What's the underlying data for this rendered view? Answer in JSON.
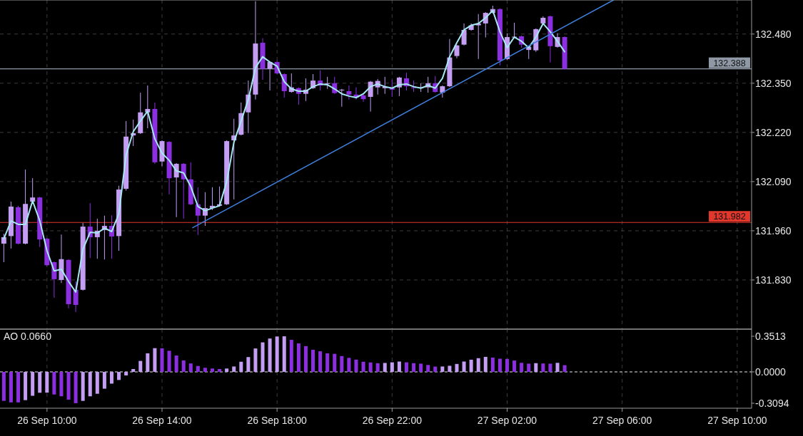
{
  "chart_data": [
    {
      "type": "candlestick",
      "tick_labels": "y",
      "grid": true,
      "x": [
        "--09-26T08:30",
        "--09-26T08:45",
        "--09-26T09:00",
        "--09-26T09:15",
        "--09-26T09:30",
        "--09-26T09:45",
        "--09-26T10:00",
        "--09-26T10:15",
        "--09-26T10:30",
        "--09-26T10:45",
        "--09-26T11:00",
        "--09-26T11:15",
        "--09-26T11:30",
        "--09-26T11:45",
        "--09-26T12:00",
        "--09-26T12:15",
        "--09-26T12:30",
        "--09-26T12:45",
        "--09-26T13:00",
        "--09-26T13:15",
        "--09-26T13:30",
        "--09-26T13:45",
        "--09-26T14:00",
        "--09-26T14:15",
        "--09-26T14:30",
        "--09-26T14:45",
        "--09-26T15:00",
        "--09-26T15:15",
        "--09-26T15:30",
        "--09-26T15:45",
        "--09-26T16:00",
        "--09-26T16:15",
        "--09-26T16:30",
        "--09-26T16:45",
        "--09-26T17:00",
        "--09-26T17:15",
        "--09-26T17:30",
        "--09-26T17:45",
        "--09-26T18:00",
        "--09-26T18:15",
        "--09-26T18:30",
        "--09-26T18:45",
        "--09-26T19:00",
        "--09-26T19:15",
        "--09-26T19:30",
        "--09-26T19:45",
        "--09-26T20:00",
        "--09-26T20:15",
        "--09-26T20:30",
        "--09-26T20:45",
        "--09-26T21:00",
        "--09-26T21:15",
        "--09-26T21:30",
        "--09-26T21:45",
        "--09-26T22:00",
        "--09-26T22:15",
        "--09-26T22:30",
        "--09-26T22:45",
        "--09-26T23:00",
        "--09-26T23:15",
        "--09-26T23:30",
        "--09-26T23:45",
        "--09-27T00:00",
        "--09-27T00:15",
        "--09-27T00:30",
        "--09-27T00:45",
        "--09-27T01:00",
        "--09-27T01:15",
        "--09-27T01:30",
        "--09-27T01:45",
        "--09-27T02:00",
        "--09-27T02:15",
        "--09-27T02:30",
        "--09-27T02:45",
        "--09-27T03:00",
        "--09-27T03:15",
        "--09-27T03:30",
        "--09-27T03:45",
        "--09-27T04:00"
      ],
      "ohlc": [
        [
          131.926,
          131.952,
          131.877,
          131.943
        ],
        [
          131.946,
          132.037,
          131.913,
          132.024
        ],
        [
          132.022,
          132.026,
          131.924,
          131.926
        ],
        [
          131.926,
          132.122,
          131.924,
          132.031
        ],
        [
          132.037,
          132.099,
          132.033,
          132.048
        ],
        [
          132.048,
          132.05,
          131.917,
          131.937
        ],
        [
          131.939,
          131.941,
          131.867,
          131.869
        ],
        [
          131.877,
          131.879,
          131.783,
          131.832
        ],
        [
          131.83,
          131.95,
          131.822,
          131.885
        ],
        [
          131.883,
          131.885,
          131.755,
          131.766
        ],
        [
          131.804,
          131.826,
          131.745,
          131.764
        ],
        [
          131.804,
          131.981,
          131.802,
          131.971
        ],
        [
          131.971,
          132.033,
          131.888,
          131.943
        ],
        [
          131.943,
          131.992,
          131.886,
          131.96
        ],
        [
          131.962,
          132.0,
          131.884,
          131.973
        ],
        [
          131.973,
          132.001,
          131.886,
          131.945
        ],
        [
          131.946,
          132.079,
          131.907,
          132.069
        ],
        [
          132.071,
          132.25,
          132.066,
          132.209
        ],
        [
          132.212,
          132.254,
          132.184,
          132.218
        ],
        [
          132.218,
          132.325,
          132.216,
          132.273
        ],
        [
          132.273,
          132.344,
          132.231,
          132.282
        ],
        [
          132.282,
          132.299,
          132.137,
          132.141
        ],
        [
          132.143,
          132.199,
          132.131,
          132.197
        ],
        [
          132.195,
          132.197,
          132.056,
          132.099
        ],
        [
          132.101,
          132.139,
          131.996,
          132.137
        ],
        [
          132.137,
          132.139,
          131.992,
          132.096
        ],
        [
          132.096,
          132.141,
          132.028,
          132.03
        ],
        [
          132.03,
          132.075,
          131.949,
          132.0
        ],
        [
          132.0,
          132.062,
          131.973,
          132.02
        ],
        [
          132.02,
          132.075,
          132.015,
          132.026
        ],
        [
          132.026,
          132.077,
          132.024,
          132.03
        ],
        [
          132.03,
          132.199,
          132.028,
          132.197
        ],
        [
          132.199,
          132.256,
          132.043,
          132.212
        ],
        [
          132.214,
          132.299,
          132.212,
          132.271
        ],
        [
          132.273,
          132.357,
          132.218,
          132.32
        ],
        [
          132.32,
          132.567,
          132.307,
          132.455
        ],
        [
          132.457,
          132.469,
          132.359,
          132.388
        ],
        [
          132.388,
          132.408,
          132.331,
          132.406
        ],
        [
          132.406,
          132.41,
          132.374,
          132.376
        ],
        [
          132.374,
          132.376,
          132.312,
          132.329
        ],
        [
          132.327,
          132.376,
          132.325,
          132.339
        ],
        [
          132.337,
          132.339,
          132.293,
          132.322
        ],
        [
          132.322,
          132.363,
          132.303,
          132.333
        ],
        [
          132.337,
          132.374,
          132.335,
          132.357
        ],
        [
          132.357,
          132.384,
          132.331,
          132.344
        ],
        [
          132.348,
          132.367,
          132.335,
          132.35
        ],
        [
          132.35,
          132.367,
          132.322,
          132.324
        ],
        [
          132.331,
          132.335,
          132.288,
          132.333
        ],
        [
          132.329,
          132.344,
          132.307,
          132.32
        ],
        [
          132.32,
          132.339,
          132.307,
          132.312
        ],
        [
          132.318,
          132.322,
          132.301,
          132.308
        ],
        [
          132.314,
          132.356,
          132.275,
          132.354
        ],
        [
          132.339,
          132.361,
          132.32,
          132.356
        ],
        [
          132.337,
          132.367,
          132.322,
          132.341
        ],
        [
          132.337,
          132.359,
          132.314,
          132.333
        ],
        [
          132.339,
          132.367,
          132.316,
          132.365
        ],
        [
          132.363,
          132.378,
          132.331,
          132.342
        ],
        [
          132.339,
          132.357,
          132.327,
          132.337
        ],
        [
          132.337,
          132.35,
          132.327,
          132.339
        ],
        [
          132.339,
          132.367,
          132.325,
          132.35
        ],
        [
          132.35,
          132.369,
          132.325,
          132.327
        ],
        [
          132.325,
          132.344,
          132.312,
          132.342
        ],
        [
          132.342,
          132.467,
          132.34,
          132.418
        ],
        [
          132.422,
          132.452,
          132.416,
          132.45
        ],
        [
          132.452,
          132.508,
          132.45,
          132.491
        ],
        [
          132.491,
          132.508,
          132.489,
          132.503
        ],
        [
          132.503,
          132.533,
          132.414,
          132.508
        ],
        [
          132.508,
          132.538,
          132.471,
          132.536
        ],
        [
          132.536,
          132.555,
          132.534,
          132.546
        ],
        [
          132.546,
          132.548,
          132.397,
          132.41
        ],
        [
          132.414,
          132.482,
          132.412,
          132.472
        ],
        [
          132.471,
          132.51,
          132.469,
          132.473
        ],
        [
          132.474,
          132.476,
          132.444,
          132.452
        ],
        [
          132.438,
          132.448,
          132.414,
          132.446
        ],
        [
          132.437,
          132.495,
          132.433,
          132.493
        ],
        [
          132.508,
          132.527,
          132.506,
          132.523
        ],
        [
          132.527,
          132.529,
          132.405,
          132.448
        ],
        [
          132.446,
          132.482,
          132.444,
          132.472
        ],
        [
          132.472,
          132.474,
          132.386,
          132.388
        ]
      ],
      "colors": [
        "#c39ef3",
        "#c39ef3",
        "#8b2fe0",
        "#c39ef3",
        "#c39ef3",
        "#8b2fe0",
        "#8b2fe0",
        "#8b2fe0",
        "#c39ef3",
        "#8b2fe0",
        "#8b2fe0",
        "#c39ef3",
        "#8b2fe0",
        "#c39ef3",
        "#c39ef3",
        "#8b2fe0",
        "#c39ef3",
        "#c39ef3",
        "#c39ef3",
        "#c39ef3",
        "#c39ef3",
        "#8b2fe0",
        "#c39ef3",
        "#8b2fe0",
        "#c39ef3",
        "#8b2fe0",
        "#8b2fe0",
        "#8b2fe0",
        "#c39ef3",
        "#c39ef3",
        "#c39ef3",
        "#c39ef3",
        "#c39ef3",
        "#c39ef3",
        "#c39ef3",
        "#c39ef3",
        "#8b2fe0",
        "#c39ef3",
        "#8b2fe0",
        "#8b2fe0",
        "#c39ef3",
        "#8b2fe0",
        "#c39ef3",
        "#c39ef3",
        "#8b2fe0",
        "#c39ef3",
        "#8b2fe0",
        "#c39ef3",
        "#8b2fe0",
        "#8b2fe0",
        "#8b2fe0",
        "#c39ef3",
        "#c39ef3",
        "#c39ef3",
        "#8b2fe0",
        "#c39ef3",
        "#8b2fe0",
        "#8b2fe0",
        "#c39ef3",
        "#c39ef3",
        "#8b2fe0",
        "#c39ef3",
        "#c39ef3",
        "#c39ef3",
        "#c39ef3",
        "#c39ef3",
        "#c39ef3",
        "#c39ef3",
        "#c39ef3",
        "#8b2fe0",
        "#c39ef3",
        "#c39ef3",
        "#8b2fe0",
        "#c39ef3",
        "#c39ef3",
        "#c39ef3",
        "#8b2fe0",
        "#c39ef3",
        "#8b2fe0"
      ],
      "series": [
        {
          "type": "line",
          "color": "#a6e8f2",
          "values": [
            131.939,
            131.986,
            131.977,
            131.977,
            132.039,
            131.986,
            131.907,
            131.854,
            131.858,
            131.826,
            131.798,
            131.911,
            131.956,
            131.954,
            131.967,
            131.958,
            132.005,
            132.16,
            132.222,
            132.25,
            132.276,
            132.203,
            132.165,
            132.146,
            132.118,
            132.113,
            132.077,
            132.024,
            132.013,
            132.02,
            132.026,
            132.09,
            132.194,
            132.25,
            132.307,
            132.391,
            132.42,
            132.406,
            132.395,
            132.354,
            132.335,
            132.329,
            132.329,
            132.341,
            132.348,
            132.346,
            132.335,
            132.322,
            132.316,
            132.312,
            132.322,
            132.341,
            132.348,
            132.341,
            132.337,
            132.346,
            132.348,
            132.341,
            132.337,
            132.344,
            132.337,
            132.363,
            132.42,
            132.457,
            132.491,
            132.503,
            132.508,
            132.523,
            132.542,
            132.486,
            132.444,
            132.472,
            132.461,
            132.444,
            132.472,
            132.508,
            132.486,
            132.461,
            132.433
          ]
        },
        {
          "type": "line",
          "color": "#3f7fdc",
          "x": [
            "--09-26T15:04",
            "--09-27T05:42"
          ],
          "values": [
            131.968,
            132.57
          ]
        }
      ],
      "xlim": [
        "--09-26T08:22",
        "--09-27T10:30"
      ],
      "xticks": [
        {
          "value": "--09-26T10:00",
          "label": null
        },
        {
          "value": "--09-26T14:00",
          "label": null
        },
        {
          "value": "--09-26T18:00",
          "label": null
        },
        {
          "value": "--09-26T22:00",
          "label": null
        },
        {
          "value": "--09-27T02:00",
          "label": null
        },
        {
          "value": "--09-27T06:00",
          "label": null
        },
        {
          "value": "--09-27T10:00",
          "label": null
        }
      ],
      "ylim": [
        131.7,
        132.57
      ],
      "yticks": [
        {
          "value": 131.83,
          "label": "131.830"
        },
        {
          "value": 131.96,
          "label": "131.960"
        },
        {
          "value": 132.09,
          "label": "132.090"
        },
        {
          "value": 132.22,
          "label": "132.220"
        },
        {
          "value": 132.35,
          "label": "132.350"
        },
        {
          "value": 132.48,
          "label": "132.480"
        }
      ],
      "ref_lines": [
        {
          "axis": "y",
          "value": 132.388,
          "label": "132.388",
          "color": "#8e99a5"
        },
        {
          "axis": "y",
          "value": 131.982,
          "label": "131.982",
          "color": "#e2372c"
        }
      ]
    },
    {
      "type": "bar",
      "title": "AO 0.0660",
      "grid": "x",
      "x": [
        "--09-26T08:30",
        "--09-26T08:45",
        "--09-26T09:00",
        "--09-26T09:15",
        "--09-26T09:30",
        "--09-26T09:45",
        "--09-26T10:00",
        "--09-26T10:15",
        "--09-26T10:30",
        "--09-26T10:45",
        "--09-26T11:00",
        "--09-26T11:15",
        "--09-26T11:30",
        "--09-26T11:45",
        "--09-26T12:00",
        "--09-26T12:15",
        "--09-26T12:30",
        "--09-26T12:45",
        "--09-26T13:00",
        "--09-26T13:15",
        "--09-26T13:30",
        "--09-26T13:45",
        "--09-26T14:00",
        "--09-26T14:15",
        "--09-26T14:30",
        "--09-26T14:45",
        "--09-26T15:00",
        "--09-26T15:15",
        "--09-26T15:30",
        "--09-26T15:45",
        "--09-26T16:00",
        "--09-26T16:15",
        "--09-26T16:30",
        "--09-26T16:45",
        "--09-26T17:00",
        "--09-26T17:15",
        "--09-26T17:30",
        "--09-26T17:45",
        "--09-26T18:00",
        "--09-26T18:15",
        "--09-26T18:30",
        "--09-26T18:45",
        "--09-26T19:00",
        "--09-26T19:15",
        "--09-26T19:30",
        "--09-26T19:45",
        "--09-26T20:00",
        "--09-26T20:15",
        "--09-26T20:30",
        "--09-26T20:45",
        "--09-26T21:00",
        "--09-26T21:15",
        "--09-26T21:30",
        "--09-26T21:45",
        "--09-26T22:00",
        "--09-26T22:15",
        "--09-26T22:30",
        "--09-26T22:45",
        "--09-26T23:00",
        "--09-26T23:15",
        "--09-26T23:30",
        "--09-26T23:45",
        "--09-27T00:00",
        "--09-27T00:15",
        "--09-27T00:30",
        "--09-27T00:45",
        "--09-27T01:00",
        "--09-27T01:15",
        "--09-27T01:30",
        "--09-27T01:45",
        "--09-27T02:00",
        "--09-27T02:15",
        "--09-27T02:30",
        "--09-27T02:45",
        "--09-27T03:00",
        "--09-27T03:15",
        "--09-27T03:30",
        "--09-27T03:45",
        "--09-27T04:00"
      ],
      "values": [
        -0.286,
        -0.301,
        -0.301,
        -0.279,
        -0.236,
        -0.206,
        -0.205,
        -0.223,
        -0.241,
        -0.274,
        -0.309,
        -0.286,
        -0.241,
        -0.216,
        -0.166,
        -0.116,
        -0.08,
        -0.035,
        0.028,
        0.108,
        0.183,
        0.234,
        0.233,
        0.208,
        0.161,
        0.113,
        0.083,
        0.058,
        0.04,
        0.033,
        0.028,
        0.033,
        0.053,
        0.1,
        0.146,
        0.231,
        0.291,
        0.329,
        0.349,
        0.351,
        0.316,
        0.281,
        0.254,
        0.218,
        0.203,
        0.183,
        0.178,
        0.156,
        0.138,
        0.121,
        0.1,
        0.093,
        0.085,
        0.088,
        0.094,
        0.102,
        0.094,
        0.086,
        0.081,
        0.068,
        0.052,
        0.053,
        0.06,
        0.078,
        0.102,
        0.12,
        0.135,
        0.148,
        0.141,
        0.13,
        0.128,
        0.112,
        0.089,
        0.081,
        0.086,
        0.083,
        0.081,
        0.089,
        0.066
      ],
      "colors": [
        "#8b2fe0",
        "#8b2fe0",
        "#8b2fe0",
        "#c39ef3",
        "#c39ef3",
        "#c39ef3",
        "#c39ef3",
        "#8b2fe0",
        "#8b2fe0",
        "#8b2fe0",
        "#8b2fe0",
        "#c39ef3",
        "#c39ef3",
        "#c39ef3",
        "#c39ef3",
        "#c39ef3",
        "#c39ef3",
        "#c39ef3",
        "#c39ef3",
        "#c39ef3",
        "#c39ef3",
        "#c39ef3",
        "#8b2fe0",
        "#8b2fe0",
        "#8b2fe0",
        "#8b2fe0",
        "#8b2fe0",
        "#8b2fe0",
        "#8b2fe0",
        "#8b2fe0",
        "#8b2fe0",
        "#c39ef3",
        "#c39ef3",
        "#c39ef3",
        "#c39ef3",
        "#c39ef3",
        "#c39ef3",
        "#c39ef3",
        "#c39ef3",
        "#c39ef3",
        "#8b2fe0",
        "#8b2fe0",
        "#8b2fe0",
        "#8b2fe0",
        "#8b2fe0",
        "#8b2fe0",
        "#8b2fe0",
        "#8b2fe0",
        "#8b2fe0",
        "#8b2fe0",
        "#8b2fe0",
        "#8b2fe0",
        "#8b2fe0",
        "#c39ef3",
        "#c39ef3",
        "#c39ef3",
        "#8b2fe0",
        "#8b2fe0",
        "#8b2fe0",
        "#8b2fe0",
        "#8b2fe0",
        "#c39ef3",
        "#c39ef3",
        "#c39ef3",
        "#c39ef3",
        "#c39ef3",
        "#c39ef3",
        "#c39ef3",
        "#8b2fe0",
        "#8b2fe0",
        "#8b2fe0",
        "#8b2fe0",
        "#8b2fe0",
        "#8b2fe0",
        "#c39ef3",
        "#8b2fe0",
        "#8b2fe0",
        "#c39ef3",
        "#8b2fe0"
      ],
      "xlim": [
        "--09-26T08:22",
        "--09-27T10:30"
      ],
      "xticks": [
        {
          "value": "--09-26T10:00",
          "label": "26 Sep 10:00"
        },
        {
          "value": "--09-26T14:00",
          "label": "26 Sep 14:00"
        },
        {
          "value": "--09-26T18:00",
          "label": "26 Sep 18:00"
        },
        {
          "value": "--09-26T22:00",
          "label": "26 Sep 22:00"
        },
        {
          "value": "--09-27T02:00",
          "label": "27 Sep 02:00"
        },
        {
          "value": "--09-27T06:00",
          "label": "27 Sep 06:00"
        },
        {
          "value": "--09-27T10:00",
          "label": "27 Sep 10:00"
        }
      ],
      "ylim": [
        -0.3586,
        0.4216
      ],
      "yticks": [
        -0.3094,
        {
          "value": 0,
          "label": "0.0000"
        },
        0.3513
      ],
      "ref_lines": [
        {
          "axis": "y",
          "value": 0,
          "color": "#e8e8e8",
          "line_style": "dashed"
        }
      ]
    }
  ]
}
